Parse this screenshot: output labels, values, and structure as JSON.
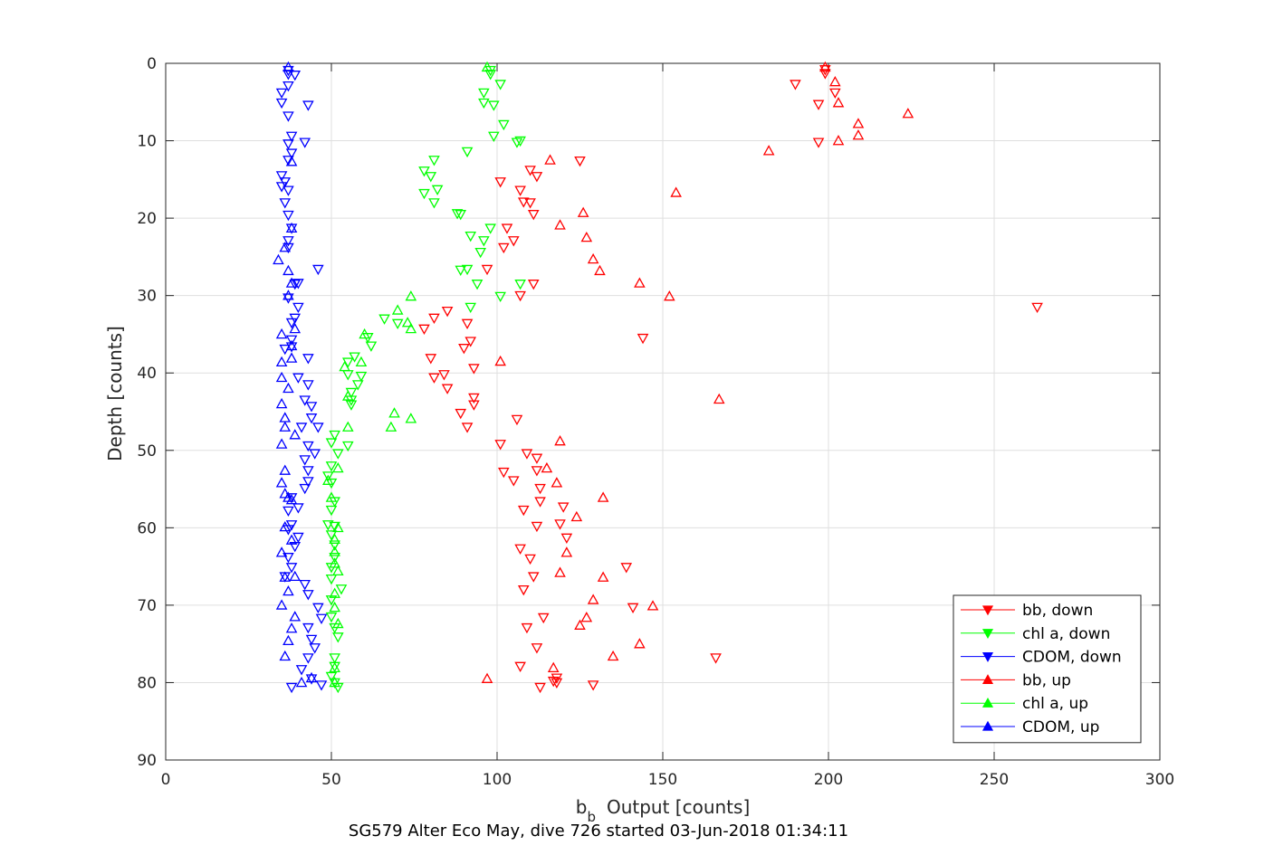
{
  "caption": "SG579 Alter Eco May, dive 726 started 03-Jun-2018 01:34:11",
  "chart_data": {
    "type": "scatter",
    "title": "",
    "xlabel_main": "b",
    "xlabel_sub": "b",
    "xlabel_rest": "Output [counts]",
    "ylabel": "Depth [counts]",
    "xlim": [
      0,
      300
    ],
    "ylim": [
      0,
      90
    ],
    "y_reversed": true,
    "grid": true,
    "legend_position": "bottom-right",
    "x_ticks": [
      0,
      50,
      100,
      150,
      200,
      250,
      300
    ],
    "y_ticks": [
      0,
      10,
      20,
      30,
      40,
      50,
      60,
      70,
      80,
      90
    ],
    "series": [
      {
        "name": "bb, down",
        "marker": "triangle-down",
        "color": "#ff0000",
        "points": [
          [
            199,
            0.8
          ],
          [
            199,
            1.3
          ],
          [
            190,
            2.7
          ],
          [
            202,
            3.8
          ],
          [
            197,
            5.3
          ],
          [
            197,
            10.2
          ],
          [
            125,
            12.6
          ],
          [
            112,
            14.6
          ],
          [
            110,
            13.8
          ],
          [
            101,
            15.3
          ],
          [
            107,
            16.4
          ],
          [
            108,
            17.9
          ],
          [
            111,
            19.5
          ],
          [
            110,
            18.0
          ],
          [
            103,
            21.3
          ],
          [
            105,
            22.9
          ],
          [
            102,
            23.8
          ],
          [
            97,
            26.6
          ],
          [
            111,
            28.5
          ],
          [
            107,
            30.0
          ],
          [
            263,
            31.5
          ],
          [
            85,
            32.0
          ],
          [
            81,
            32.9
          ],
          [
            91,
            33.6
          ],
          [
            78,
            34.3
          ],
          [
            144,
            35.5
          ],
          [
            92,
            35.9
          ],
          [
            90,
            36.8
          ],
          [
            80,
            38.1
          ],
          [
            93,
            39.4
          ],
          [
            81,
            40.6
          ],
          [
            84,
            40.2
          ],
          [
            85,
            42.0
          ],
          [
            93,
            43.2
          ],
          [
            93,
            44.1
          ],
          [
            89,
            45.2
          ],
          [
            106,
            46.0
          ],
          [
            91,
            47.0
          ],
          [
            101,
            49.2
          ],
          [
            109,
            50.4
          ],
          [
            112,
            51.0
          ],
          [
            112,
            52.6
          ],
          [
            102,
            52.8
          ],
          [
            105,
            53.9
          ],
          [
            113,
            54.9
          ],
          [
            113,
            56.6
          ],
          [
            108,
            57.7
          ],
          [
            120,
            57.3
          ],
          [
            112,
            59.8
          ],
          [
            119,
            59.5
          ],
          [
            121,
            61.3
          ],
          [
            107,
            62.7
          ],
          [
            110,
            64.0
          ],
          [
            139,
            65.1
          ],
          [
            111,
            66.3
          ],
          [
            108,
            68.0
          ],
          [
            141,
            70.3
          ],
          [
            114,
            71.6
          ],
          [
            109,
            72.9
          ],
          [
            112,
            75.5
          ],
          [
            107,
            77.9
          ],
          [
            166,
            76.8
          ],
          [
            117,
            79.8
          ],
          [
            118,
            79.4
          ],
          [
            118,
            80.0
          ],
          [
            113,
            80.6
          ],
          [
            129,
            80.3
          ]
        ]
      },
      {
        "name": "chl a, down",
        "marker": "triangle-down",
        "color": "#00ff00",
        "points": [
          [
            98,
            1.4
          ],
          [
            98,
            0.9
          ],
          [
            101,
            2.7
          ],
          [
            96,
            3.8
          ],
          [
            96,
            5.1
          ],
          [
            99,
            5.4
          ],
          [
            102,
            7.9
          ],
          [
            99,
            9.4
          ],
          [
            106,
            10.2
          ],
          [
            107,
            10.0
          ],
          [
            91,
            11.4
          ],
          [
            81,
            12.5
          ],
          [
            78,
            13.9
          ],
          [
            80,
            14.6
          ],
          [
            82,
            16.3
          ],
          [
            78,
            16.8
          ],
          [
            81,
            18.0
          ],
          [
            89,
            19.5
          ],
          [
            88,
            19.4
          ],
          [
            98,
            21.3
          ],
          [
            96,
            22.9
          ],
          [
            92,
            22.3
          ],
          [
            95,
            24.4
          ],
          [
            89,
            26.7
          ],
          [
            91,
            26.6
          ],
          [
            94,
            28.5
          ],
          [
            107,
            28.5
          ],
          [
            101,
            30.1
          ],
          [
            92,
            31.5
          ],
          [
            66,
            33.0
          ],
          [
            70,
            33.6
          ],
          [
            61,
            35.4
          ],
          [
            62,
            36.5
          ],
          [
            57,
            37.9
          ],
          [
            55,
            38.6
          ],
          [
            55,
            40.2
          ],
          [
            59,
            40.4
          ],
          [
            58,
            41.5
          ],
          [
            56,
            42.5
          ],
          [
            56,
            43.5
          ],
          [
            56,
            44.1
          ],
          [
            51,
            48.0
          ],
          [
            55,
            49.4
          ],
          [
            50,
            49.0
          ],
          [
            52,
            50.4
          ],
          [
            50,
            52.0
          ],
          [
            49,
            53.3
          ],
          [
            50,
            54.2
          ],
          [
            51,
            56.6
          ],
          [
            50,
            57.7
          ],
          [
            49,
            59.6
          ],
          [
            51,
            59.8
          ],
          [
            50,
            60.9
          ],
          [
            51,
            62.2
          ],
          [
            51,
            63.8
          ],
          [
            50,
            65.1
          ],
          [
            50,
            66.6
          ],
          [
            53,
            67.9
          ],
          [
            50,
            69.3
          ],
          [
            50,
            71.5
          ],
          [
            51,
            72.9
          ],
          [
            52,
            74.1
          ],
          [
            51,
            76.8
          ],
          [
            51,
            77.9
          ],
          [
            50,
            79.2
          ],
          [
            51,
            80.0
          ],
          [
            52,
            80.6
          ]
        ]
      },
      {
        "name": "CDOM, down",
        "marker": "triangle-down",
        "color": "#0000ff",
        "points": [
          [
            37,
            0.9
          ],
          [
            37,
            1.4
          ],
          [
            39,
            1.5
          ],
          [
            37,
            2.9
          ],
          [
            35,
            3.8
          ],
          [
            35,
            5.1
          ],
          [
            43,
            5.4
          ],
          [
            37,
            6.8
          ],
          [
            38,
            9.4
          ],
          [
            42,
            10.2
          ],
          [
            37,
            10.4
          ],
          [
            37,
            12.5
          ],
          [
            38,
            11.6
          ],
          [
            35,
            14.5
          ],
          [
            36,
            15.3
          ],
          [
            35,
            15.9
          ],
          [
            37,
            16.4
          ],
          [
            36,
            18.0
          ],
          [
            37,
            19.6
          ],
          [
            38,
            21.3
          ],
          [
            37,
            22.9
          ],
          [
            37,
            23.8
          ],
          [
            46,
            26.6
          ],
          [
            39,
            28.5
          ],
          [
            40,
            28.4
          ],
          [
            37,
            30.3
          ],
          [
            40,
            31.5
          ],
          [
            38,
            33.5
          ],
          [
            39,
            32.9
          ],
          [
            38,
            35.7
          ],
          [
            36,
            36.9
          ],
          [
            38,
            36.6
          ],
          [
            43,
            38.1
          ],
          [
            40,
            40.6
          ],
          [
            43,
            41.5
          ],
          [
            42,
            43.5
          ],
          [
            44,
            44.3
          ],
          [
            44,
            45.8
          ],
          [
            46,
            47.0
          ],
          [
            41,
            47.0
          ],
          [
            43,
            49.4
          ],
          [
            42,
            51.2
          ],
          [
            45,
            50.4
          ],
          [
            43,
            52.6
          ],
          [
            43,
            54.0
          ],
          [
            42,
            54.9
          ],
          [
            38,
            56.1
          ],
          [
            40,
            57.4
          ],
          [
            37,
            57.8
          ],
          [
            38,
            59.6
          ],
          [
            40,
            61.2
          ],
          [
            37,
            60.2
          ],
          [
            39,
            62.4
          ],
          [
            37,
            63.8
          ],
          [
            38,
            65.1
          ],
          [
            36,
            66.3
          ],
          [
            42,
            67.3
          ],
          [
            43,
            68.6
          ],
          [
            46,
            70.3
          ],
          [
            47,
            71.7
          ],
          [
            43,
            72.9
          ],
          [
            44,
            74.4
          ],
          [
            45,
            75.5
          ],
          [
            43,
            76.8
          ],
          [
            41,
            78.3
          ],
          [
            44,
            79.5
          ],
          [
            47,
            80.3
          ],
          [
            38,
            80.6
          ]
        ]
      },
      {
        "name": "bb, up",
        "marker": "triangle-up",
        "color": "#ff0000",
        "points": [
          [
            199,
            0.5
          ],
          [
            202,
            2.4
          ],
          [
            203,
            5.1
          ],
          [
            224,
            6.5
          ],
          [
            209,
            7.8
          ],
          [
            209,
            9.3
          ],
          [
            203,
            10.0
          ],
          [
            182,
            11.3
          ],
          [
            116,
            12.5
          ],
          [
            154,
            16.7
          ],
          [
            126,
            19.3
          ],
          [
            119,
            20.9
          ],
          [
            127,
            22.5
          ],
          [
            129,
            25.3
          ],
          [
            131,
            26.8
          ],
          [
            143,
            28.4
          ],
          [
            152,
            30.1
          ],
          [
            101,
            38.5
          ],
          [
            167,
            43.4
          ],
          [
            119,
            48.8
          ],
          [
            115,
            52.3
          ],
          [
            118,
            54.2
          ],
          [
            132,
            56.1
          ],
          [
            124,
            58.6
          ],
          [
            121,
            63.2
          ],
          [
            119,
            65.8
          ],
          [
            132,
            66.4
          ],
          [
            129,
            69.3
          ],
          [
            147,
            70.1
          ],
          [
            127,
            71.6
          ],
          [
            125,
            72.6
          ],
          [
            143,
            75.0
          ],
          [
            135,
            76.6
          ],
          [
            117,
            78.1
          ],
          [
            97,
            79.5
          ]
        ]
      },
      {
        "name": "chl a, up",
        "marker": "triangle-up",
        "color": "#00ff00",
        "points": [
          [
            97,
            0.5
          ],
          [
            74,
            30.1
          ],
          [
            70,
            31.9
          ],
          [
            73,
            33.5
          ],
          [
            74,
            34.3
          ],
          [
            60,
            35.0
          ],
          [
            59,
            38.6
          ],
          [
            54,
            39.2
          ],
          [
            55,
            43.0
          ],
          [
            74,
            45.9
          ],
          [
            69,
            45.2
          ],
          [
            68,
            47.0
          ],
          [
            55,
            47.0
          ],
          [
            52,
            52.3
          ],
          [
            49,
            53.9
          ],
          [
            50,
            56.1
          ],
          [
            52,
            60.0
          ],
          [
            51,
            61.5
          ],
          [
            51,
            63.1
          ],
          [
            51,
            64.6
          ],
          [
            52,
            65.6
          ],
          [
            51,
            68.5
          ],
          [
            51,
            70.3
          ],
          [
            52,
            72.4
          ],
          [
            51,
            78.1
          ],
          [
            51,
            80.0
          ]
        ]
      },
      {
        "name": "CDOM, up",
        "marker": "triangle-up",
        "color": "#0000ff",
        "points": [
          [
            37,
            0.5
          ],
          [
            38,
            12.7
          ],
          [
            38,
            21.3
          ],
          [
            36,
            23.8
          ],
          [
            34,
            25.4
          ],
          [
            37,
            26.8
          ],
          [
            38,
            28.4
          ],
          [
            37,
            30.0
          ],
          [
            39,
            34.3
          ],
          [
            35,
            35.0
          ],
          [
            38,
            36.5
          ],
          [
            35,
            38.6
          ],
          [
            38,
            38.1
          ],
          [
            35,
            40.6
          ],
          [
            37,
            42.0
          ],
          [
            35,
            44.0
          ],
          [
            36,
            45.8
          ],
          [
            36,
            47.0
          ],
          [
            39,
            48.0
          ],
          [
            35,
            49.2
          ],
          [
            36,
            52.6
          ],
          [
            35,
            54.2
          ],
          [
            36,
            55.6
          ],
          [
            37,
            56.1
          ],
          [
            38,
            56.4
          ],
          [
            36,
            59.9
          ],
          [
            38,
            61.6
          ],
          [
            35,
            63.2
          ],
          [
            36,
            66.4
          ],
          [
            39,
            66.3
          ],
          [
            37,
            68.2
          ],
          [
            35,
            70.0
          ],
          [
            39,
            71.5
          ],
          [
            38,
            73.0
          ],
          [
            37,
            74.6
          ],
          [
            36,
            76.6
          ],
          [
            44,
            79.4
          ],
          [
            41,
            80.0
          ]
        ]
      }
    ]
  }
}
